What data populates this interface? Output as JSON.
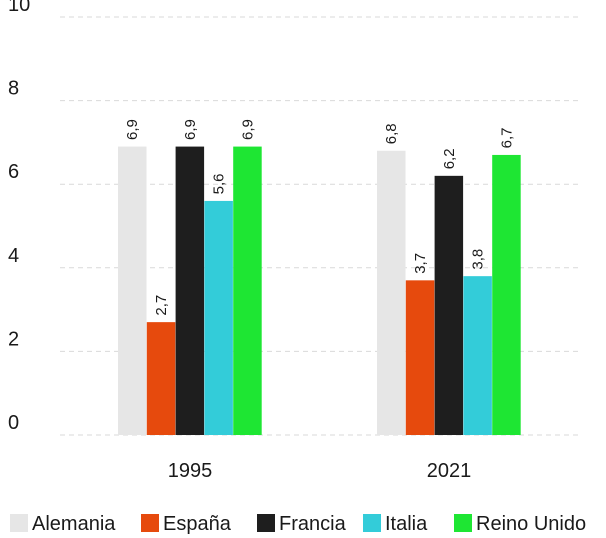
{
  "chart_data": {
    "type": "bar",
    "categories": [
      "1995",
      "2021"
    ],
    "series": [
      {
        "name": "Alemania",
        "color": "#e6e6e6",
        "values": [
          6.9,
          6.8
        ],
        "labels": [
          "6,9",
          "6,8"
        ]
      },
      {
        "name": "España",
        "color": "#e64a0d",
        "values": [
          2.7,
          3.7
        ],
        "labels": [
          "2,7",
          "3,7"
        ]
      },
      {
        "name": "Francia",
        "color": "#1e1e1e",
        "values": [
          6.9,
          6.2
        ],
        "labels": [
          "6,9",
          "6,2"
        ]
      },
      {
        "name": "Italia",
        "color": "#33ccd9",
        "values": [
          5.6,
          3.8
        ],
        "labels": [
          "5,6",
          "3,8"
        ]
      },
      {
        "name": "Reino Unido",
        "color": "#1ee633",
        "values": [
          6.9,
          6.7
        ],
        "labels": [
          "6,9",
          "6,7"
        ]
      }
    ],
    "y_ticks": [
      "0",
      "2",
      "4",
      "6",
      "8",
      "10"
    ],
    "ylim": [
      0,
      10
    ],
    "grid": true,
    "legend_position": "bottom"
  }
}
